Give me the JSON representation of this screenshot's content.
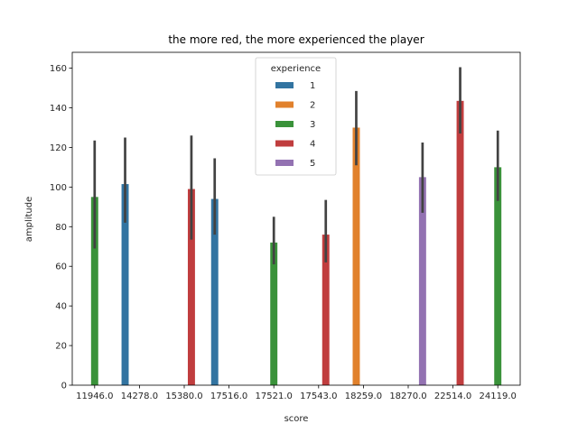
{
  "chart_data": {
    "type": "bar",
    "title": "the more red, the more experienced the player",
    "xlabel": "score",
    "ylabel": "amplitude",
    "ylim": [
      0,
      168
    ],
    "yticks": [
      0,
      20,
      40,
      60,
      80,
      100,
      120,
      140,
      160
    ],
    "categories": [
      "11946.0",
      "14278.0",
      "15380.0",
      "17516.0",
      "17521.0",
      "17543.0",
      "18259.0",
      "18270.0",
      "22514.0",
      "24119.0"
    ],
    "hue_levels": [
      "1",
      "2",
      "3",
      "4",
      "5"
    ],
    "legend": {
      "title": "experience",
      "placement": "upper-center"
    },
    "colors": {
      "1": "#3274a1",
      "2": "#e1812c",
      "3": "#3a923a",
      "4": "#c03d3e",
      "5": "#9372b2",
      "errorbar": "#424242"
    },
    "series": [
      {
        "name": "1",
        "values": [
          null,
          101.5,
          null,
          94,
          null,
          null,
          null,
          null,
          null,
          null
        ],
        "err_low": [
          null,
          82,
          null,
          76,
          null,
          null,
          null,
          null,
          null,
          null
        ],
        "err_high": [
          null,
          125,
          null,
          114.5,
          null,
          null,
          null,
          null,
          null,
          null
        ]
      },
      {
        "name": "2",
        "values": [
          null,
          null,
          null,
          null,
          null,
          null,
          130,
          null,
          null,
          null
        ],
        "err_low": [
          null,
          null,
          null,
          null,
          null,
          null,
          111,
          null,
          null,
          null
        ],
        "err_high": [
          null,
          null,
          null,
          null,
          null,
          null,
          148.5,
          null,
          null,
          null
        ]
      },
      {
        "name": "3",
        "values": [
          95,
          null,
          null,
          null,
          72,
          null,
          null,
          null,
          null,
          110
        ],
        "err_low": [
          69,
          null,
          null,
          null,
          61,
          null,
          null,
          null,
          null,
          93
        ],
        "err_high": [
          123.5,
          null,
          null,
          null,
          85,
          null,
          null,
          null,
          null,
          128.5
        ]
      },
      {
        "name": "4",
        "values": [
          null,
          null,
          99,
          null,
          null,
          76,
          null,
          null,
          143.5,
          null
        ],
        "err_low": [
          null,
          null,
          73.5,
          null,
          null,
          62,
          null,
          null,
          127,
          null
        ],
        "err_high": [
          null,
          null,
          126,
          null,
          null,
          93.5,
          null,
          null,
          160.5,
          null
        ]
      },
      {
        "name": "5",
        "values": [
          null,
          null,
          null,
          null,
          null,
          null,
          null,
          105,
          null,
          null
        ],
        "err_low": [
          null,
          null,
          null,
          null,
          null,
          null,
          null,
          87,
          null,
          null
        ],
        "err_high": [
          null,
          null,
          null,
          null,
          null,
          null,
          null,
          122.5,
          null,
          null
        ]
      }
    ]
  }
}
